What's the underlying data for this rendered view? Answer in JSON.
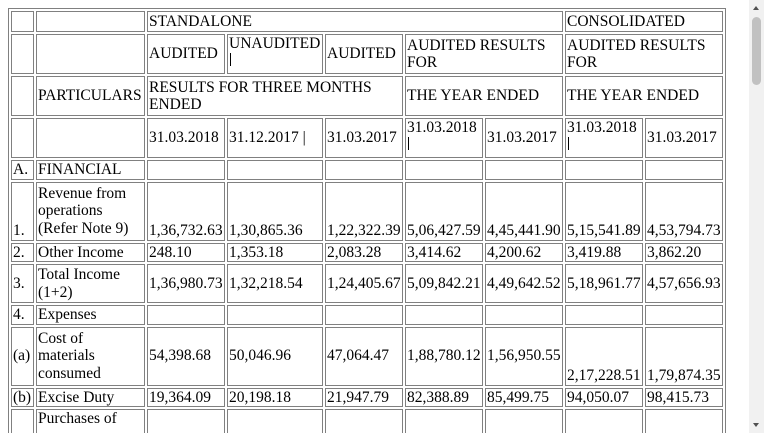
{
  "header": {
    "standalone": "STANDALONE",
    "consolidated": "CONSOLIDATED",
    "audited_1": "AUDITED",
    "unaudited": "UNAUDITED",
    "audited_2": "AUDITED",
    "audited_results_for_1": "AUDITED RESULTS FOR",
    "audited_results_for_2": "AUDITED RESULTS FOR",
    "particulars": "PARTICULARS",
    "results_three_months": "RESULTS FOR THREE MONTHS ENDED",
    "year_ended_1": "THE YEAR ENDED",
    "year_ended_2": "THE YEAR ENDED",
    "dates": [
      "31.03.2018",
      "31.12.2017 |",
      "31.03.2017",
      "31.03.2018",
      "31.03.2017",
      "31.03.2018",
      "31.03.2017"
    ]
  },
  "section_a": {
    "code": "A.",
    "title": "FINANCIAL"
  },
  "rows": [
    {
      "code": "1.",
      "particular": "Revenue from operations (Refer Note 9)",
      "values": [
        "1,36,732.63",
        "1,30,865.36",
        "1,22,322.39",
        "5,06,427.59",
        "4,45,441.90",
        "5,15,541.89",
        "4,53,794.73"
      ]
    },
    {
      "code": "2.",
      "particular": "Other Income",
      "values": [
        "248.10",
        "1,353.18",
        "2,083.28",
        "3,414.62",
        "4,200.62",
        "3,419.88",
        "3,862.20"
      ]
    },
    {
      "code": "3.",
      "particular": "Total Income (1+2)",
      "values": [
        "1,36,980.73",
        "1,32,218.54",
        "1,24,405.67",
        "5,09,842.21",
        "4,49,642.52",
        "5,18,961.77",
        "4,57,656.93"
      ]
    }
  ],
  "expenses": {
    "code": "4.",
    "title": "Expenses"
  },
  "expense_rows": [
    {
      "code": "(a)",
      "particular": "Cost of materials consumed",
      "values": [
        "54,398.68",
        "50,046.96",
        "47,064.47",
        "1,88,780.12",
        "1,56,950.55",
        "2,17,228.51",
        "1,79,874.35"
      ]
    },
    {
      "code": "(b)",
      "particular": "Excise Duty",
      "values": [
        "19,364.09",
        "20,198.18",
        "21,947.79",
        "82,388.89",
        "85,499.75",
        "94,050.07",
        "98,415.73"
      ]
    },
    {
      "code": "",
      "particular": "Purchases of",
      "values": [
        "",
        "",
        "",
        "",
        "",
        "",
        ""
      ]
    }
  ]
}
